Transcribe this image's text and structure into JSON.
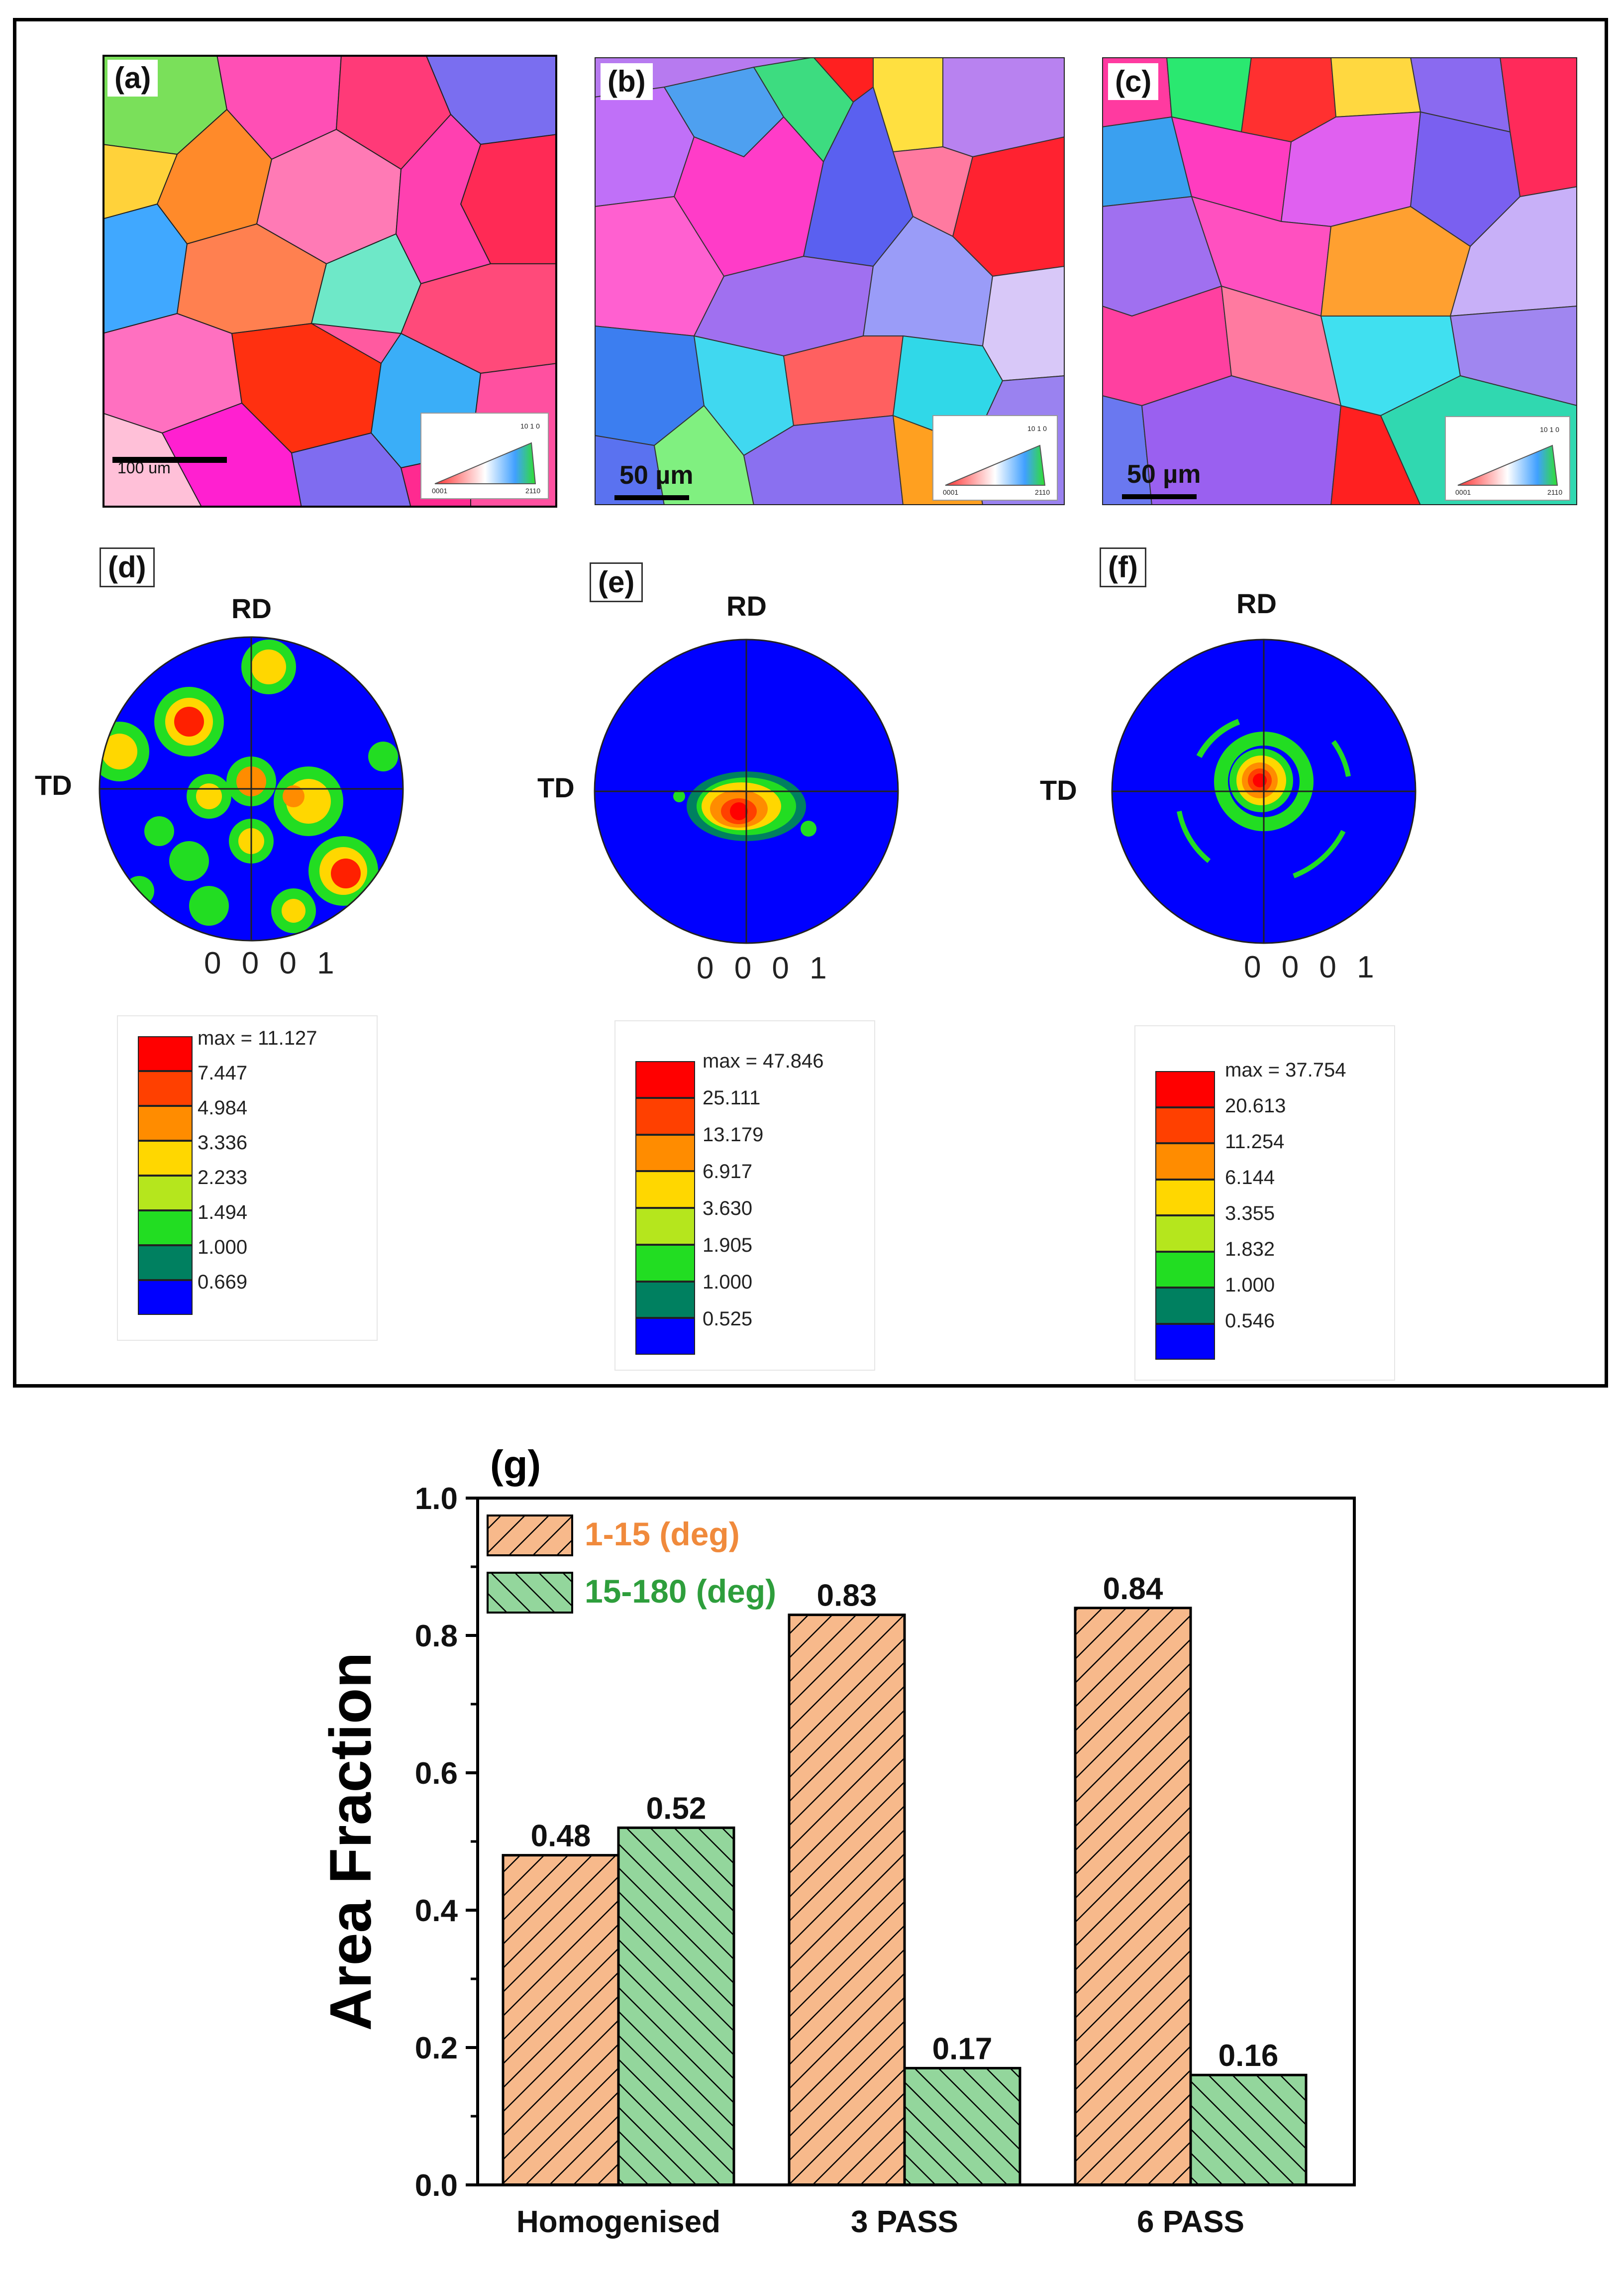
{
  "panels": {
    "a": {
      "label": "(a)",
      "scale_label": "100 um"
    },
    "b": {
      "label": "(b)",
      "scale_label": "50 µm"
    },
    "c": {
      "label": "(c)",
      "scale_label": "50 µm"
    },
    "d": {
      "label": "(d)",
      "rd": "RD",
      "td": "TD",
      "pole": "0 0 0 1",
      "legend": [
        "max = 11.127",
        "7.447",
        "4.984",
        "3.336",
        "2.233",
        "1.494",
        "1.000",
        "0.669"
      ]
    },
    "e": {
      "label": "(e)",
      "rd": "RD",
      "td": "TD",
      "pole": "0 0 0 1",
      "legend": [
        "max = 47.846",
        "25.111",
        "13.179",
        "6.917",
        "3.630",
        "1.905",
        "1.000",
        "0.525"
      ]
    },
    "f": {
      "label": "(f)",
      "rd": "RD",
      "td": "TD",
      "pole": "0 0 0 1",
      "legend": [
        "max = 37.754",
        "20.613",
        "11.254",
        "6.144",
        "3.355",
        "1.832",
        "1.000",
        "0.546"
      ]
    }
  },
  "ipf_key": {
    "top": "10 1 0",
    "left": "0001",
    "right": "2110"
  },
  "legend_colors": [
    "#ff0000",
    "#ff4000",
    "#ff8c00",
    "#ffd700",
    "#b5e61d",
    "#22dd22",
    "#008060",
    "#0000ff"
  ],
  "chart_data": {
    "type": "bar",
    "panel_label": "(g)",
    "categories": [
      "Homogenised",
      "3 PASS",
      "6 PASS"
    ],
    "series": [
      {
        "name": "1-15 (deg)",
        "values": [
          0.48,
          0.83,
          0.84
        ],
        "color": "#f7b98b",
        "legend_color": "#f08a3c"
      },
      {
        "name": "15-180 (deg)",
        "values": [
          0.52,
          0.17,
          0.16
        ],
        "color": "#93d69c",
        "legend_color": "#2e9e3c"
      }
    ],
    "value_labels": [
      [
        "0.48",
        "0.83",
        "0.84"
      ],
      [
        "0.52",
        "0.17",
        "0.16"
      ]
    ],
    "ylabel": "Area Fraction",
    "ylim": [
      0,
      1.0
    ],
    "yticks": [
      "0.0",
      "0.2",
      "0.4",
      "0.6",
      "0.8",
      "1.0"
    ]
  }
}
